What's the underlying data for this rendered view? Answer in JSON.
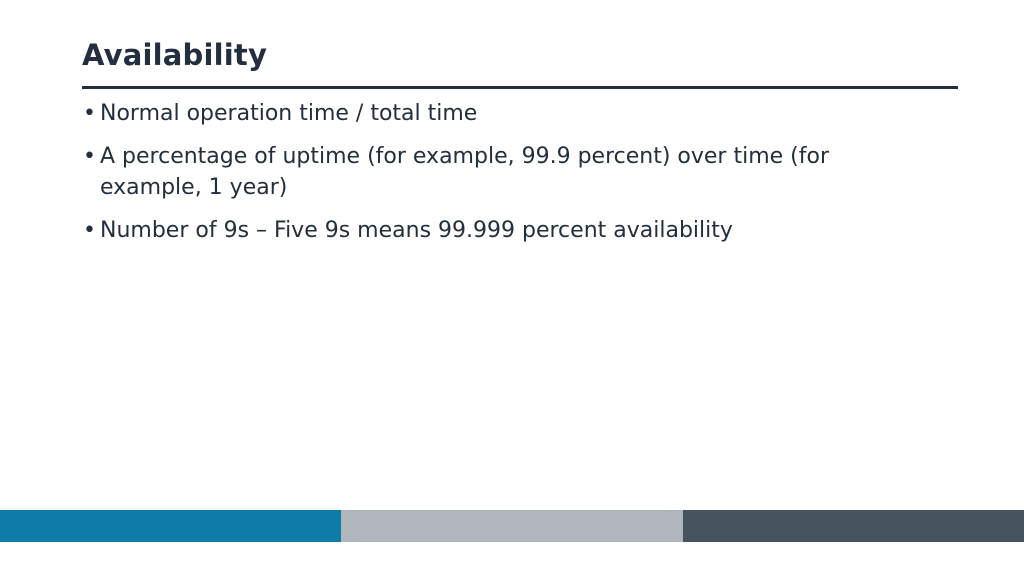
{
  "slide": {
    "title": "Availability",
    "bullets": [
      {
        "marker": "•",
        "text": "Normal operation time / total time"
      },
      {
        "marker": "•",
        "text": "A percentage of uptime (for example, 99.9 percent) over time (for example, 1 year)"
      },
      {
        "marker": "•",
        "text": "Number of 9s – Five 9s means 99.999 percent availability"
      }
    ]
  },
  "colors": {
    "text": "#232f3e",
    "footer_left": "#0e7ca8",
    "footer_middle": "#b1b6bd",
    "footer_right": "#47545f"
  }
}
